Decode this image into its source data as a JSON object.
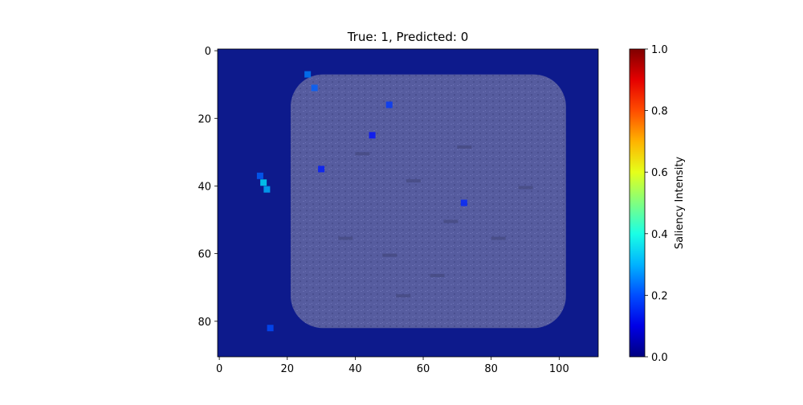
{
  "chart_data": {
    "type": "heatmap",
    "title": "True: 1, Predicted: 0",
    "xlabel": "",
    "ylabel": "",
    "x_ticks": [
      0,
      20,
      40,
      60,
      80,
      100
    ],
    "y_ticks": [
      0,
      20,
      40,
      60,
      80
    ],
    "xlim": [
      -0.5,
      111.5
    ],
    "ylim": [
      90.5,
      -0.5
    ],
    "image_size": [
      112,
      91
    ],
    "colorbar": {
      "label": "Saliency Intensity",
      "range": [
        0.0,
        1.0
      ],
      "ticks": [
        "0.0",
        "0.2",
        "0.4",
        "0.6",
        "0.8",
        "1.0"
      ],
      "colormap": "jet"
    },
    "overlay": {
      "object_shape": "rounded-rectangle",
      "object_bounds_data": {
        "x0": 21,
        "x1": 102,
        "y0": 7,
        "y1": 82
      },
      "background_saliency": 0.05,
      "object_saliency": 0.0,
      "hotspots": [
        {
          "x": 13,
          "y": 39,
          "value": 0.35
        },
        {
          "x": 14,
          "y": 41,
          "value": 0.3
        },
        {
          "x": 26,
          "y": 7,
          "value": 0.25
        },
        {
          "x": 28,
          "y": 11,
          "value": 0.22
        },
        {
          "x": 15,
          "y": 82,
          "value": 0.2
        },
        {
          "x": 12,
          "y": 37,
          "value": 0.22
        },
        {
          "x": 50,
          "y": 16,
          "value": 0.18
        },
        {
          "x": 72,
          "y": 45,
          "value": 0.16
        },
        {
          "x": 30,
          "y": 35,
          "value": 0.15
        },
        {
          "x": 45,
          "y": 25,
          "value": 0.14
        }
      ]
    },
    "colors": {
      "background": "#0d1a8c",
      "object": "#5a5fa0",
      "object_speckle": "#6e73b4"
    }
  }
}
